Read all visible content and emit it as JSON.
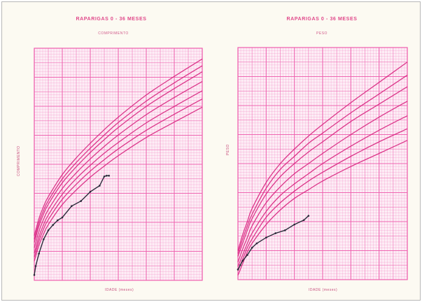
{
  "charts": [
    {
      "title": "RAPARIGAS 0 - 36 MESES",
      "subtitle": "COMPRIMENTO",
      "ylabel": "COMPRIMENTO",
      "xlabel": "IDADE (meses)"
    },
    {
      "title": "RAPARIGAS 0 - 36 MESES",
      "subtitle": "PESO",
      "ylabel": "PESO",
      "xlabel": "IDADE (meses)"
    }
  ],
  "colors": {
    "grid": "#ee5fae",
    "paper_bg": "#fdeef6",
    "percentile": "#d8247f",
    "child": "#2a2a3a"
  },
  "chart_data": [
    {
      "type": "line",
      "title": "RAPARIGAS 0 - 36 MESES",
      "subtitle": "COMPRIMENTO",
      "xlabel": "IDADE (meses)",
      "ylabel": "COMPRIMENTO",
      "xlim": [
        0,
        36
      ],
      "ylim": [
        40,
        105
      ],
      "grid": true,
      "x": [
        0,
        1,
        2,
        3,
        6,
        9,
        12,
        15,
        18,
        24,
        30,
        36
      ],
      "series": [
        {
          "values": [
            45.4,
            49.8,
            53.0,
            55.6,
            61.2,
            65.3,
            68.9,
            72.0,
            74.9,
            80.0,
            84.3,
            88.5
          ]
        },
        {
          "values": [
            46.5,
            51.0,
            54.4,
            57.0,
            62.7,
            66.9,
            70.6,
            73.8,
            76.8,
            82.0,
            86.5,
            90.8
          ]
        },
        {
          "values": [
            47.6,
            52.2,
            55.6,
            58.3,
            64.1,
            68.5,
            72.2,
            75.6,
            78.6,
            84.1,
            88.7,
            93.1
          ]
        },
        {
          "values": [
            49.1,
            53.7,
            57.1,
            59.8,
            65.7,
            70.1,
            74.0,
            77.5,
            80.7,
            86.4,
            91.2,
            95.7
          ]
        },
        {
          "values": [
            50.6,
            55.2,
            58.6,
            61.3,
            67.3,
            71.8,
            75.8,
            79.4,
            82.8,
            88.7,
            93.7,
            98.4
          ]
        },
        {
          "values": [
            51.5,
            56.2,
            59.6,
            62.3,
            68.4,
            73.0,
            77.0,
            80.7,
            84.2,
            90.2,
            95.3,
            100.1
          ]
        },
        {
          "values": [
            52.5,
            57.3,
            60.7,
            63.4,
            69.6,
            74.3,
            78.4,
            82.2,
            85.7,
            91.9,
            97.1,
            102.0
          ]
        }
      ],
      "child_measurements": {
        "x": [
          0,
          0.3,
          1,
          2,
          3,
          4,
          5,
          6,
          8,
          10,
          12,
          14,
          15,
          15.5,
          16
        ],
        "y": [
          41.5,
          44.0,
          47.5,
          51.5,
          54.0,
          55.5,
          56.8,
          57.6,
          60.8,
          62.2,
          64.8,
          66.5,
          69.1,
          69.3,
          69.3
        ]
      }
    },
    {
      "type": "line",
      "title": "RAPARIGAS 0 - 36 MESES",
      "subtitle": "PESO",
      "xlabel": "IDADE (meses)",
      "ylabel": "PESO",
      "xlim": [
        0,
        36
      ],
      "ylim": [
        2,
        18
      ],
      "grid": true,
      "x": [
        0,
        1,
        2,
        3,
        6,
        9,
        12,
        15,
        18,
        24,
        30,
        36
      ],
      "series": [
        {
          "values": [
            2.3,
            3.1,
            3.9,
            4.5,
            5.8,
            6.8,
            7.6,
            8.2,
            8.8,
            9.8,
            10.7,
            11.6
          ]
        },
        {
          "values": [
            2.6,
            3.4,
            4.2,
            4.8,
            6.3,
            7.3,
            8.1,
            8.8,
            9.4,
            10.5,
            11.5,
            12.4
          ]
        },
        {
          "values": [
            2.9,
            3.7,
            4.5,
            5.2,
            6.7,
            7.8,
            8.6,
            9.3,
            10.0,
            11.2,
            12.3,
            13.3
          ]
        },
        {
          "values": [
            3.2,
            4.1,
            4.9,
            5.7,
            7.3,
            8.4,
            9.3,
            10.0,
            10.7,
            12.0,
            13.2,
            14.3
          ]
        },
        {
          "values": [
            3.6,
            4.5,
            5.4,
            6.2,
            7.9,
            9.1,
            10.0,
            10.8,
            11.5,
            12.9,
            14.1,
            15.3
          ]
        },
        {
          "values": [
            3.8,
            4.8,
            5.7,
            6.5,
            8.3,
            9.6,
            10.5,
            11.4,
            12.1,
            13.5,
            14.8,
            16.1
          ]
        },
        {
          "values": [
            4.0,
            5.1,
            6.0,
            6.9,
            8.7,
            10.0,
            11.0,
            11.9,
            12.7,
            14.2,
            15.6,
            17.0
          ]
        }
      ],
      "child_measurements": {
        "x": [
          0,
          0.5,
          1,
          2,
          3,
          4,
          6,
          8,
          10,
          12,
          14,
          15
        ],
        "y": [
          2.7,
          3.0,
          3.3,
          3.7,
          4.2,
          4.5,
          4.9,
          5.2,
          5.4,
          5.8,
          6.1,
          6.4
        ]
      }
    }
  ]
}
